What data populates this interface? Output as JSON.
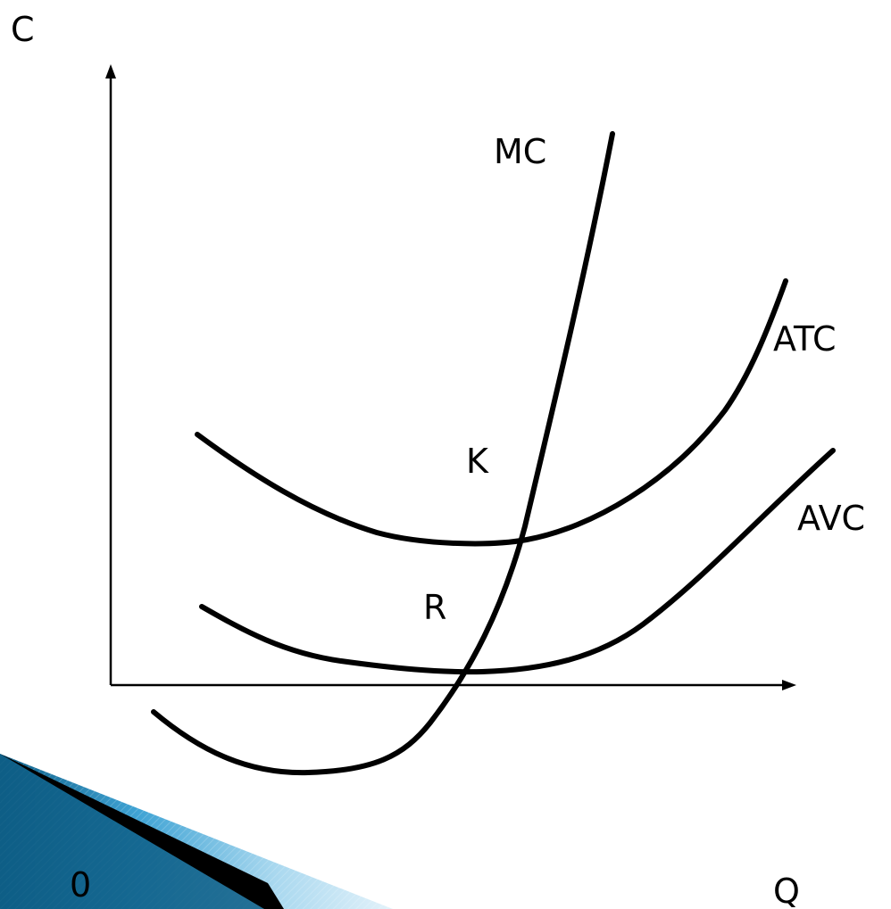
{
  "chart_data": {
    "type": "line",
    "title": "",
    "xlabel": "Q",
    "ylabel": "C",
    "origin_label": "0",
    "grid": false,
    "series": [
      {
        "name": "MC"
      },
      {
        "name": "ATC"
      },
      {
        "name": "AVC"
      }
    ],
    "annotations": [
      {
        "label": "K",
        "meaning": ""
      },
      {
        "label": "R",
        "meaning": ""
      }
    ]
  },
  "colors": {
    "curves": "#000000",
    "axes": "#000000",
    "decoration_dark": "#0e5e86",
    "decoration_light": "#cfe8f5"
  }
}
